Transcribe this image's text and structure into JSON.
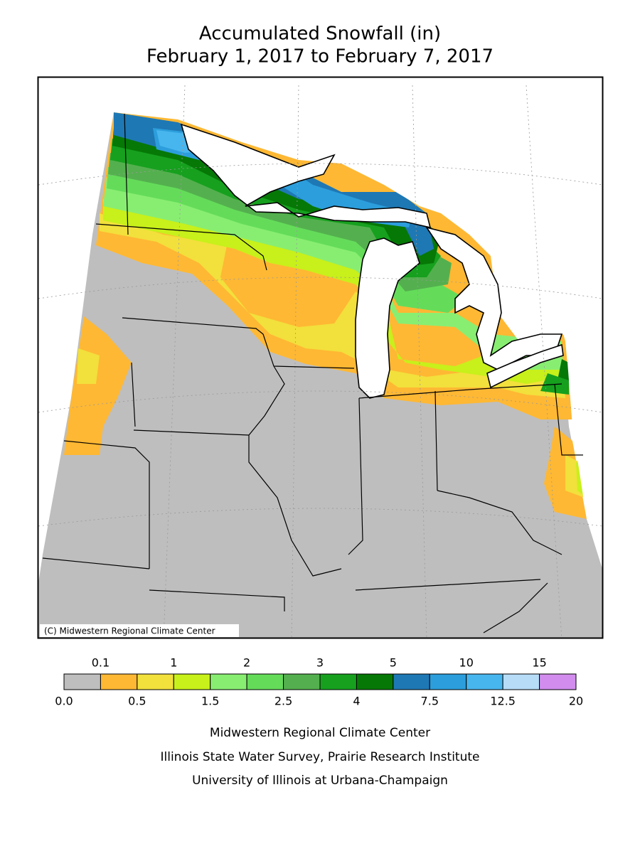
{
  "title": "Accumulated Snowfall (in)",
  "subtitle": "February 1, 2017 to February 7, 2017",
  "copyright": "(C) Midwestern Regional Climate Center",
  "legend": {
    "colors": [
      "#bebebe",
      "#ffb833",
      "#f2e03c",
      "#c8f01a",
      "#88ee72",
      "#64dc5a",
      "#54b04e",
      "#16a01e",
      "#067806",
      "#1e78b4",
      "#2c9edc",
      "#48b6ee",
      "#b6dcf8",
      "#d28cee"
    ],
    "labels": [
      "0.0",
      "0.1",
      "0.5",
      "1",
      "1.5",
      "2",
      "2.5",
      "3",
      "4",
      "5",
      "7.5",
      "10",
      "12.5",
      "15",
      "20"
    ]
  },
  "footer": [
    "Midwestern Regional Climate Center",
    "Illinois State Water Survey, Prairie Research Institute",
    "University of Illinois at Urbana-Champaign"
  ]
}
